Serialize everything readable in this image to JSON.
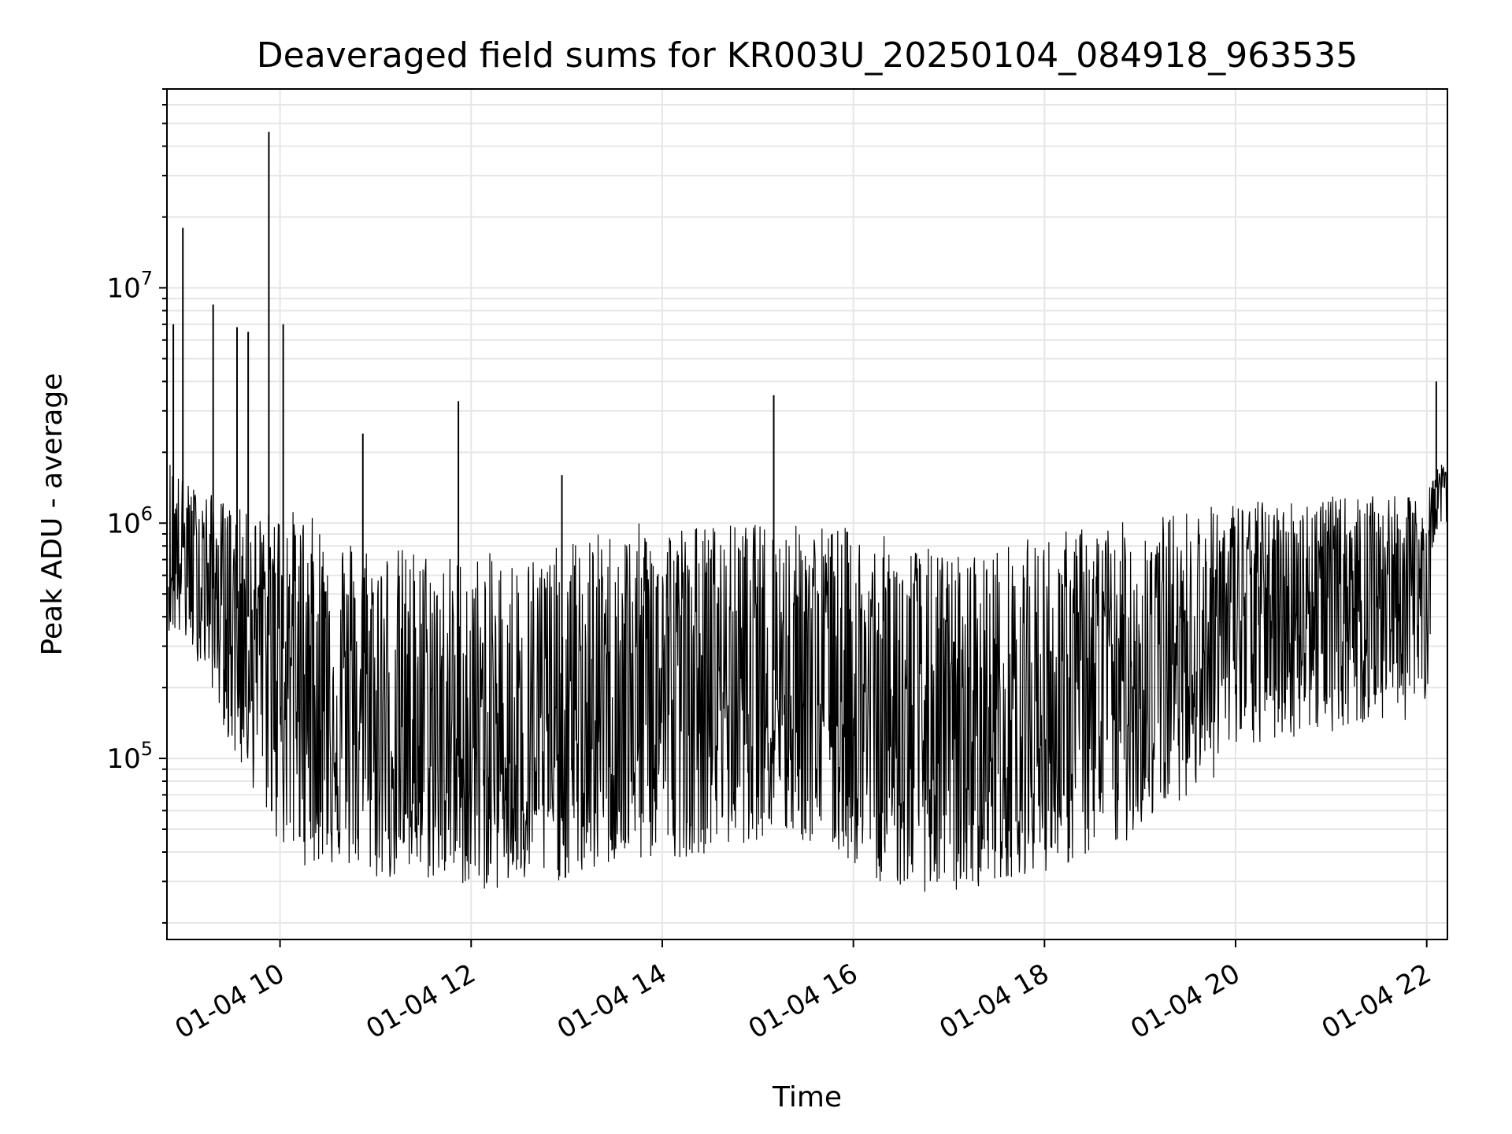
{
  "chart_data": {
    "type": "line",
    "title": "Deaveraged field sums for KR003U_20250104_084918_963535",
    "xlabel": "Time",
    "ylabel": "Peak ADU - average",
    "yscale": "log",
    "ylim": [
      17000,
      70000000
    ],
    "xlim": [
      "2025-01-04 08:49",
      "2025-01-04 22:13"
    ],
    "grid": true,
    "line_color": "#000000",
    "grid_color": "#e6e6e6",
    "x_ticks": [
      {
        "value": "2025-01-04 10:00",
        "label": "01-04 10"
      },
      {
        "value": "2025-01-04 12:00",
        "label": "01-04 12"
      },
      {
        "value": "2025-01-04 14:00",
        "label": "01-04 14"
      },
      {
        "value": "2025-01-04 16:00",
        "label": "01-04 16"
      },
      {
        "value": "2025-01-04 18:00",
        "label": "01-04 18"
      },
      {
        "value": "2025-01-04 20:00",
        "label": "01-04 20"
      },
      {
        "value": "2025-01-04 22:00",
        "label": "01-04 22"
      }
    ],
    "y_ticks": [
      {
        "value": 100000,
        "base": "10",
        "exp": "5"
      },
      {
        "value": 1000000,
        "base": "10",
        "exp": "6"
      },
      {
        "value": 10000000,
        "base": "10",
        "exp": "7"
      }
    ],
    "series": [
      {
        "x": [
          "2025-01-04 08:50",
          "2025-01-04 09:00",
          "2025-01-04 09:10",
          "2025-01-04 09:20",
          "2025-01-04 09:30",
          "2025-01-04 09:40",
          "2025-01-04 09:50",
          "2025-01-04 10:00",
          "2025-01-04 10:15",
          "2025-01-04 10:30",
          "2025-01-04 10:45",
          "2025-01-04 11:00",
          "2025-01-04 11:15",
          "2025-01-04 11:30",
          "2025-01-04 11:45",
          "2025-01-04 12:00",
          "2025-01-04 12:15",
          "2025-01-04 12:30",
          "2025-01-04 12:45",
          "2025-01-04 13:00",
          "2025-01-04 13:15",
          "2025-01-04 13:30",
          "2025-01-04 13:45",
          "2025-01-04 14:00",
          "2025-01-04 14:15",
          "2025-01-04 14:30",
          "2025-01-04 14:45",
          "2025-01-04 15:00",
          "2025-01-04 15:15",
          "2025-01-04 15:30",
          "2025-01-04 15:45",
          "2025-01-04 16:00",
          "2025-01-04 16:15",
          "2025-01-04 16:30",
          "2025-01-04 16:45",
          "2025-01-04 17:00",
          "2025-01-04 17:15",
          "2025-01-04 17:30",
          "2025-01-04 17:45",
          "2025-01-04 18:00",
          "2025-01-04 18:15",
          "2025-01-04 18:30",
          "2025-01-04 18:45",
          "2025-01-04 19:00",
          "2025-01-04 19:15",
          "2025-01-04 19:30",
          "2025-01-04 19:45",
          "2025-01-04 20:00",
          "2025-01-04 20:15",
          "2025-01-04 20:30",
          "2025-01-04 20:45",
          "2025-01-04 21:00",
          "2025-01-04 21:15",
          "2025-01-04 21:30",
          "2025-01-04 21:45",
          "2025-01-04 22:00",
          "2025-01-04 22:05",
          "2025-01-04 22:10",
          "2025-01-04 22:13"
        ],
        "median": [
          700000,
          800000,
          650000,
          500000,
          450000,
          400000,
          350000,
          300000,
          250000,
          180000,
          150000,
          130000,
          120000,
          110000,
          105000,
          100000,
          100000,
          100000,
          105000,
          110000,
          120000,
          140000,
          170000,
          190000,
          200000,
          210000,
          220000,
          230000,
          240000,
          230000,
          200000,
          170000,
          140000,
          120000,
          110000,
          100000,
          105000,
          110000,
          120000,
          130000,
          150000,
          180000,
          200000,
          230000,
          260000,
          300000,
          350000,
          420000,
          450000,
          480000,
          500000,
          520000,
          540000,
          560000,
          580000,
          600000,
          1400000,
          1500000,
          1400000
        ],
        "low": [
          350000,
          300000,
          250000,
          180000,
          100000,
          80000,
          60000,
          40000,
          35000,
          35000,
          33000,
          30000,
          30000,
          30000,
          30000,
          28000,
          27000,
          28000,
          30000,
          30000,
          32000,
          35000,
          35000,
          38000,
          38000,
          40000,
          42000,
          45000,
          45000,
          43000,
          40000,
          35000,
          30000,
          28000,
          27000,
          26000,
          28000,
          30000,
          32000,
          33000,
          35000,
          38000,
          40000,
          50000,
          60000,
          70000,
          80000,
          100000,
          110000,
          120000,
          125000,
          130000,
          135000,
          140000,
          145000,
          150000,
          900000,
          1000000,
          1000000
        ],
        "high": [
          2000000,
          1500000,
          1400000,
          1300000,
          1200000,
          1100000,
          1100000,
          1200000,
          1100000,
          1000000,
          900000,
          850000,
          800000,
          800000,
          750000,
          750000,
          750000,
          750000,
          800000,
          850000,
          900000,
          950000,
          1000000,
          1050000,
          1000000,
          1000000,
          1000000,
          1000000,
          1000000,
          1000000,
          1000000,
          950000,
          900000,
          850000,
          800000,
          750000,
          780000,
          800000,
          850000,
          900000,
          950000,
          1000000,
          1000000,
          1050000,
          1100000,
          1150000,
          1200000,
          1250000,
          1250000,
          1250000,
          1300000,
          1300000,
          1300000,
          1300000,
          1300000,
          1300000,
          1700000,
          1800000,
          1700000
        ]
      }
    ],
    "spikes": [
      {
        "x": "2025-01-04 08:53",
        "y": 7000000
      },
      {
        "x": "2025-01-04 08:59",
        "y": 18000000
      },
      {
        "x": "2025-01-04 09:18",
        "y": 8500000
      },
      {
        "x": "2025-01-04 09:33",
        "y": 6800000
      },
      {
        "x": "2025-01-04 09:40",
        "y": 6500000
      },
      {
        "x": "2025-01-04 09:53",
        "y": 46000000
      },
      {
        "x": "2025-01-04 10:02",
        "y": 7000000
      },
      {
        "x": "2025-01-04 10:52",
        "y": 2400000
      },
      {
        "x": "2025-01-04 11:52",
        "y": 3300000
      },
      {
        "x": "2025-01-04 12:57",
        "y": 1600000
      },
      {
        "x": "2025-01-04 15:10",
        "y": 3500000
      },
      {
        "x": "2025-01-04 22:06",
        "y": 4000000
      }
    ]
  }
}
